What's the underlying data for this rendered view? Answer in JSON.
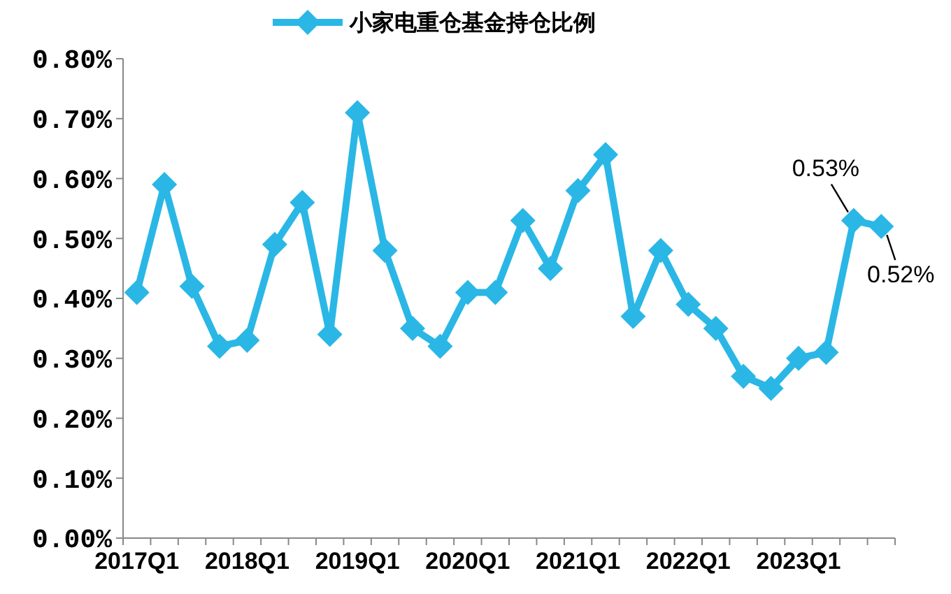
{
  "chart_data": {
    "type": "line",
    "categories": [
      "2017Q1",
      null,
      null,
      null,
      "2018Q1",
      null,
      null,
      null,
      "2019Q1",
      null,
      null,
      null,
      "2020Q1",
      null,
      null,
      null,
      "2021Q1",
      null,
      null,
      null,
      "2022Q1",
      null,
      null,
      null,
      "2023Q1",
      null,
      null,
      null
    ],
    "series": [
      {
        "name": "小家电重仓基金持仓比例",
        "color": "#2ab7e6",
        "values": [
          0.41,
          0.59,
          0.42,
          0.32,
          0.33,
          0.49,
          0.56,
          0.34,
          0.71,
          0.48,
          0.35,
          0.32,
          0.41,
          0.41,
          0.53,
          0.45,
          0.58,
          0.64,
          0.37,
          0.48,
          0.39,
          0.35,
          0.27,
          0.25,
          0.3,
          0.31,
          0.53,
          0.52
        ],
        "value_labels": [
          null,
          null,
          null,
          null,
          null,
          null,
          null,
          null,
          null,
          null,
          null,
          null,
          null,
          null,
          null,
          null,
          null,
          null,
          null,
          null,
          null,
          null,
          null,
          null,
          null,
          null,
          "0.53%",
          "0.52%"
        ]
      }
    ],
    "ylim": [
      0,
      0.8
    ],
    "yticks": [
      {
        "value": 0,
        "label": "0.00%"
      },
      {
        "value": 0.1,
        "label": "0.10%"
      },
      {
        "value": 0.2,
        "label": "0.20%"
      },
      {
        "value": 0.3,
        "label": "0.30%"
      },
      {
        "value": 0.4,
        "label": "0.40%"
      },
      {
        "value": 0.5,
        "label": "0.50%"
      },
      {
        "value": 0.6,
        "label": "0.60%"
      },
      {
        "value": 0.7,
        "label": "0.70%"
      },
      {
        "value": 0.8,
        "label": "0.80%"
      }
    ],
    "legend": "top",
    "marker": "diamond",
    "line_style": "solid",
    "grid": false
  }
}
